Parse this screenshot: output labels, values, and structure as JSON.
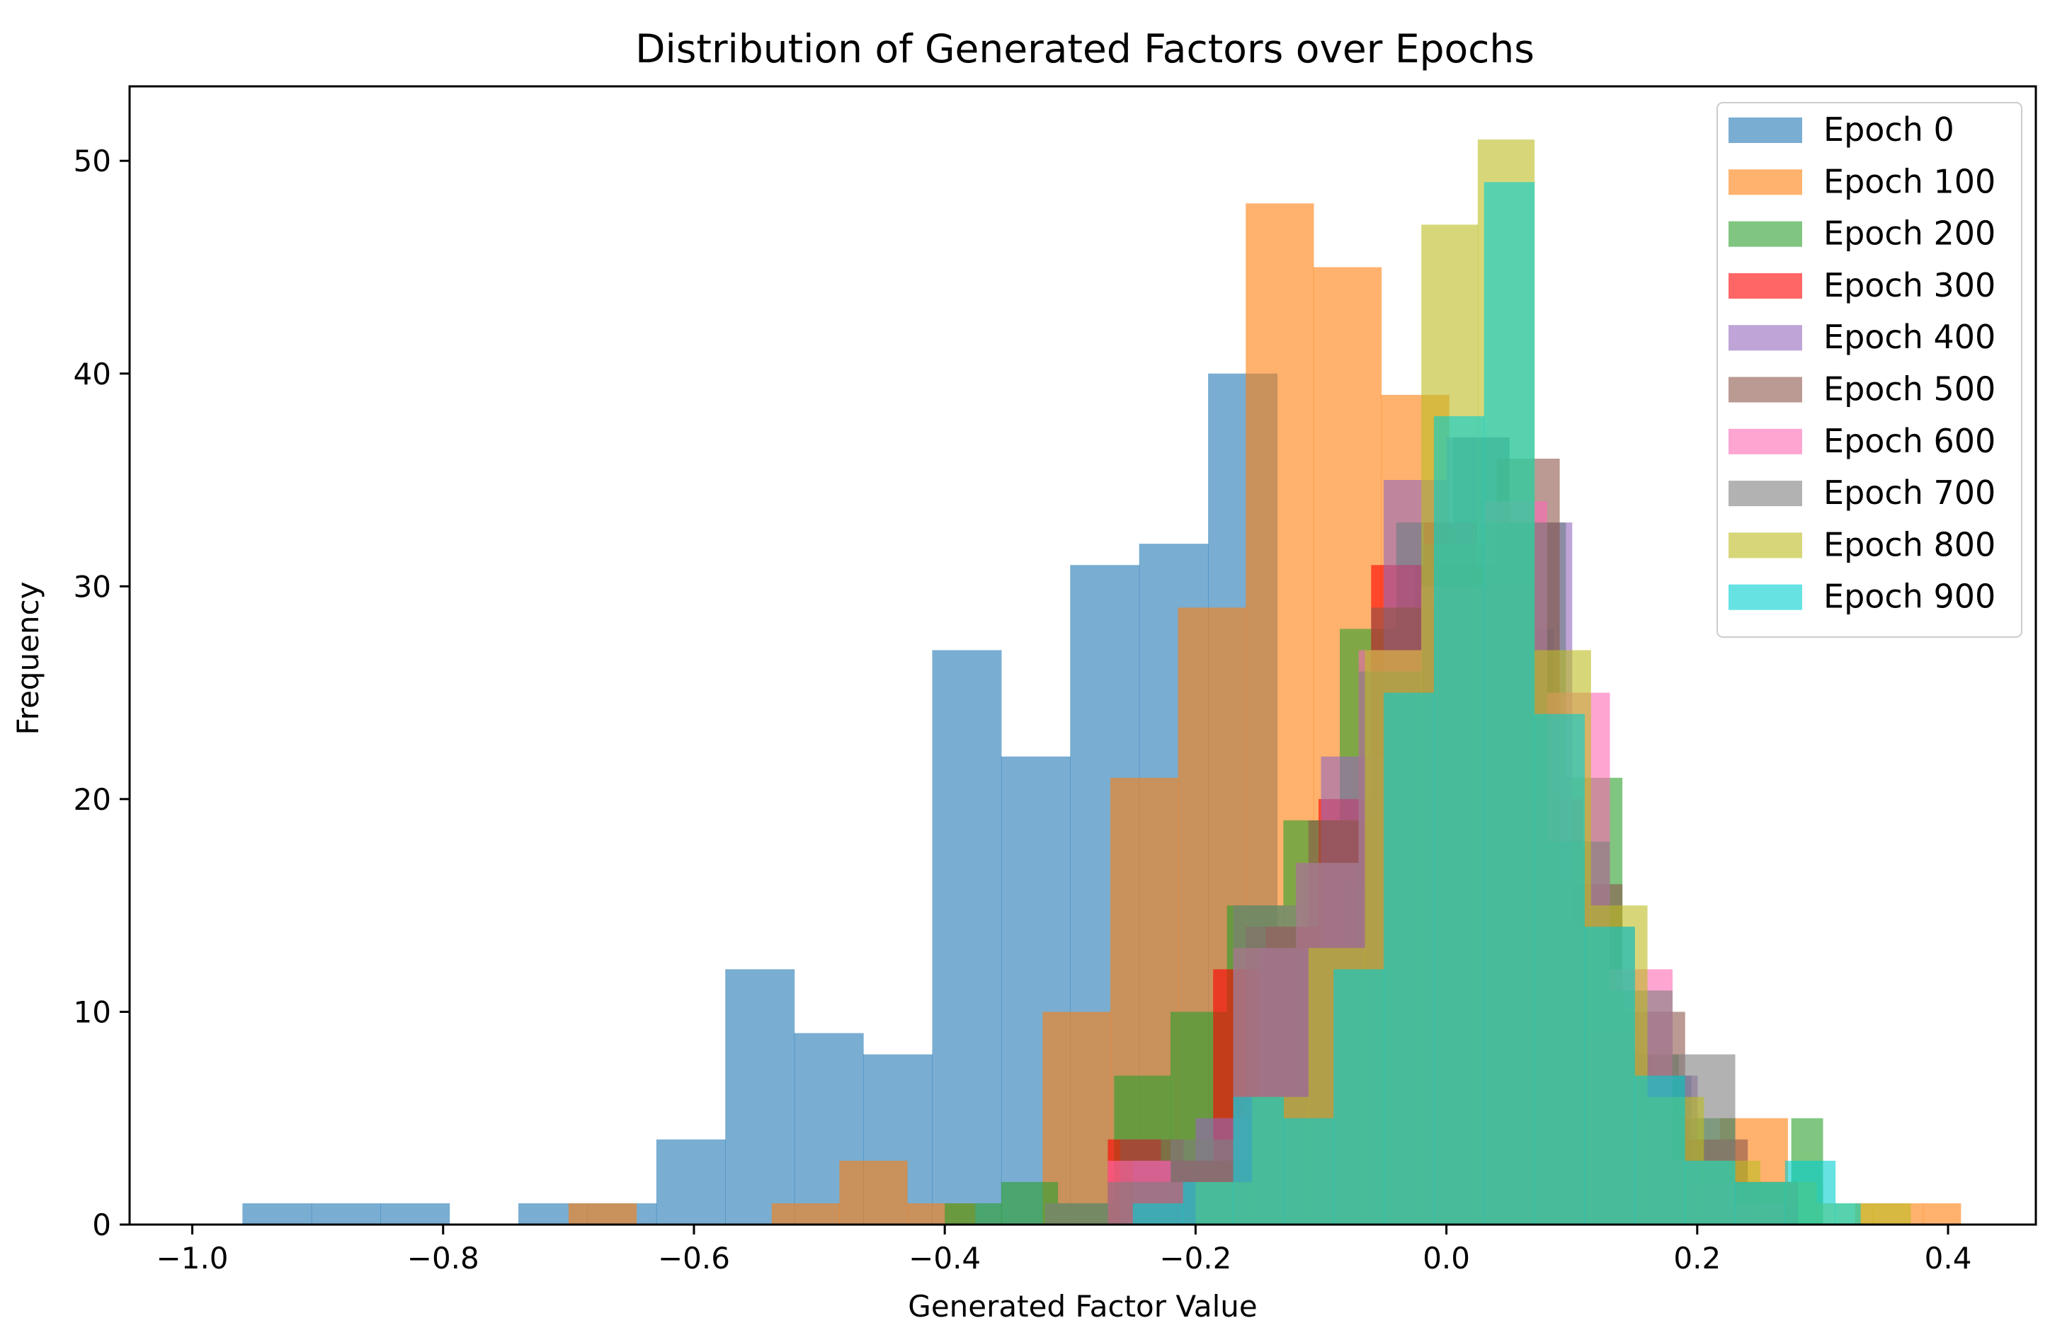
{
  "chart_data": {
    "type": "histogram",
    "title": "Distribution of Generated Factors over Epochs",
    "xlabel": "Generated Factor Value",
    "ylabel": "Frequency",
    "xlim": [
      -1.05,
      0.47
    ],
    "ylim": [
      0,
      53.5
    ],
    "xticks": [
      -1.0,
      -0.8,
      -0.6,
      -0.4,
      -0.2,
      0.0,
      0.2,
      0.4
    ],
    "xtick_labels": [
      "−1.0",
      "−0.8",
      "−0.6",
      "−0.4",
      "−0.2",
      "0.0",
      "0.2",
      "0.4"
    ],
    "yticks": [
      0,
      10,
      20,
      30,
      40,
      50
    ],
    "ytick_labels": [
      "0",
      "10",
      "20",
      "30",
      "40",
      "50"
    ],
    "bar_alpha": 0.6,
    "legend_position": "top-right",
    "series": [
      {
        "name": "Epoch 0",
        "color": "#1f77b4",
        "edges": [
          -0.96,
          -0.905,
          -0.85,
          -0.795,
          -0.74,
          -0.685,
          -0.63,
          -0.575,
          -0.52,
          -0.465,
          -0.41,
          -0.355,
          -0.3,
          -0.245,
          -0.19,
          -0.135,
          -0.08,
          -0.025,
          0.03,
          0.085,
          0.14,
          0.195,
          0.25
        ],
        "counts": [
          1,
          1,
          1,
          0,
          1,
          1,
          4,
          12,
          9,
          8,
          27,
          22,
          31,
          32,
          40,
          13,
          16,
          31,
          28,
          14,
          7,
          2
        ]
      },
      {
        "name": "Epoch 100",
        "color": "#ff7f0e",
        "edges": [
          -0.7,
          -0.646,
          -0.592,
          -0.538,
          -0.484,
          -0.43,
          -0.376,
          -0.322,
          -0.268,
          -0.214,
          -0.16,
          -0.106,
          -0.052,
          0.002,
          0.056,
          0.11,
          0.164,
          0.218,
          0.272,
          0.326,
          0.38,
          0.41
        ],
        "counts": [
          1,
          0,
          0,
          1,
          3,
          1,
          0,
          10,
          21,
          29,
          48,
          45,
          39,
          30,
          15,
          8,
          4,
          5,
          0,
          1,
          1
        ]
      },
      {
        "name": "Epoch 200",
        "color": "#2ca02c",
        "edges": [
          -0.4,
          -0.355,
          -0.31,
          -0.265,
          -0.22,
          -0.175,
          -0.13,
          -0.085,
          -0.04,
          0.005,
          0.05,
          0.095,
          0.14,
          0.185,
          0.23,
          0.275,
          0.3
        ],
        "counts": [
          1,
          2,
          1,
          7,
          10,
          15,
          19,
          28,
          33,
          37,
          33,
          21,
          8,
          5,
          2,
          5
        ]
      },
      {
        "name": "Epoch 300",
        "color": "#ff0000",
        "edges": [
          -0.27,
          -0.228,
          -0.186,
          -0.144,
          -0.102,
          -0.06,
          -0.018,
          0.024,
          0.066,
          0.108,
          0.15,
          0.192,
          0.234,
          0.276,
          0.29
        ],
        "counts": [
          4,
          3,
          12,
          14,
          20,
          31,
          33,
          30,
          20,
          9,
          5,
          2,
          1,
          0
        ]
      },
      {
        "name": "Epoch 400",
        "color": "#9467bd",
        "edges": [
          -0.25,
          -0.2,
          -0.15,
          -0.1,
          -0.05,
          0.0,
          0.05,
          0.1,
          0.15,
          0.2,
          0.25,
          0.28
        ],
        "counts": [
          3,
          5,
          13,
          22,
          35,
          37,
          33,
          14,
          7,
          2,
          1
        ]
      },
      {
        "name": "Epoch 500",
        "color": "#8c564b",
        "edges": [
          -0.26,
          -0.21,
          -0.16,
          -0.11,
          -0.06,
          -0.01,
          0.04,
          0.09,
          0.14,
          0.19,
          0.24,
          0.28
        ],
        "counts": [
          4,
          3,
          14,
          19,
          29,
          31,
          36,
          16,
          10,
          4,
          2
        ]
      },
      {
        "name": "Epoch 600",
        "color": "#ff69b4",
        "edges": [
          -0.27,
          -0.22,
          -0.17,
          -0.12,
          -0.07,
          -0.02,
          0.03,
          0.08,
          0.13,
          0.18,
          0.23,
          0.27
        ],
        "counts": [
          3,
          2,
          13,
          17,
          27,
          30,
          34,
          25,
          12,
          3,
          1
        ]
      },
      {
        "name": "Epoch 700",
        "color": "#7f7f7f",
        "edges": [
          -0.32,
          -0.27,
          -0.22,
          -0.17,
          -0.12,
          -0.07,
          -0.02,
          0.03,
          0.08,
          0.13,
          0.18,
          0.23,
          0.28
        ],
        "counts": [
          1,
          2,
          4,
          15,
          17,
          26,
          32,
          33,
          18,
          11,
          8,
          2
        ]
      },
      {
        "name": "Epoch 800",
        "color": "#bcbd22",
        "edges": [
          -0.2,
          -0.155,
          -0.11,
          -0.065,
          -0.02,
          0.025,
          0.07,
          0.115,
          0.16,
          0.205,
          0.25,
          0.295,
          0.34,
          0.37
        ],
        "counts": [
          2,
          6,
          13,
          27,
          47,
          51,
          27,
          15,
          6,
          3,
          2,
          1,
          1
        ]
      },
      {
        "name": "Epoch 900",
        "color": "#00ced1",
        "edges": [
          -0.25,
          -0.21,
          -0.17,
          -0.13,
          -0.09,
          -0.05,
          -0.01,
          0.03,
          0.07,
          0.11,
          0.15,
          0.19,
          0.23,
          0.27,
          0.31,
          0.33
        ],
        "counts": [
          1,
          2,
          6,
          5,
          12,
          25,
          38,
          49,
          24,
          14,
          7,
          3,
          2,
          3,
          1
        ]
      }
    ]
  }
}
